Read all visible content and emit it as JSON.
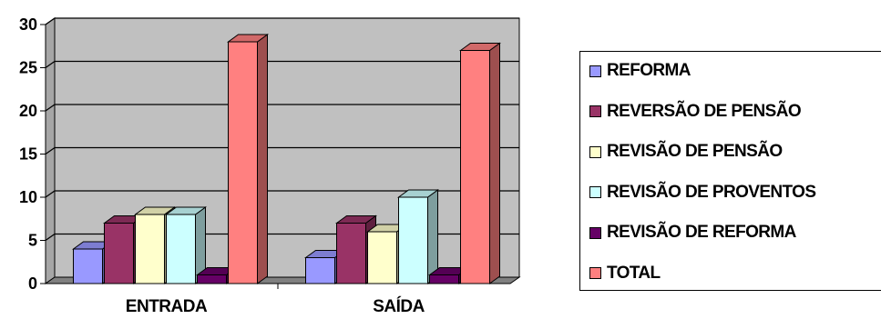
{
  "chart_data": {
    "type": "bar",
    "title": "",
    "xlabel": "",
    "ylabel": "",
    "categories": [
      "ENTRADA",
      "SAÍDA"
    ],
    "ylim": [
      0,
      30
    ],
    "yticks": [
      0,
      5,
      10,
      15,
      20,
      25,
      30
    ],
    "grid": true,
    "legend_position": "right",
    "three_d": true,
    "series": [
      {
        "name": "REFORMA",
        "values": [
          4,
          3
        ],
        "color": "#9999ff"
      },
      {
        "name": "REVERSÃO DE PENSÃO",
        "values": [
          7,
          7
        ],
        "color": "#993366"
      },
      {
        "name": "REVISÃO DE PENSÃO",
        "values": [
          8,
          6
        ],
        "color": "#ffffcc"
      },
      {
        "name": "REVISÃO DE PROVENTOS",
        "values": [
          8,
          10
        ],
        "color": "#ccffff"
      },
      {
        "name": "REVISÃO DE REFORMA",
        "values": [
          1,
          1
        ],
        "color": "#660066"
      },
      {
        "name": "TOTAL",
        "values": [
          28,
          27
        ],
        "color": "#ff8080"
      }
    ],
    "plot_background": "#c0c0c0",
    "gridline_color": "#000000"
  }
}
